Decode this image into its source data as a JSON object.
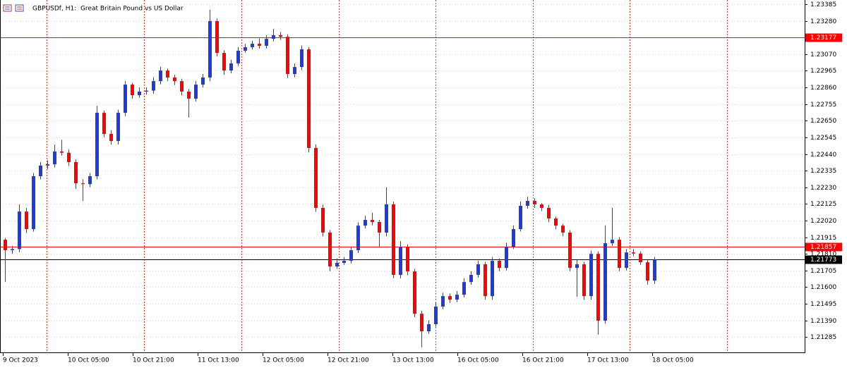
{
  "chart_data": {
    "type": "candlestick",
    "title": "GBPUSDf, H1:  Great Britain Pound vs US Dollar",
    "up_color": "#1f3be0",
    "down_color": "#ff0000",
    "ylim": [
      1.21188,
      1.23412
    ],
    "yticks": [
      1.23385,
      {
        "value": 1.2328,
        "label": "1.23280"
      },
      {
        "value": 1.2307,
        "label": "1.23070"
      },
      1.22965,
      {
        "value": 1.2286,
        "label": "1.22860"
      },
      1.22755,
      {
        "value": 1.2265,
        "label": "1.22650"
      },
      1.22545,
      {
        "value": 1.2244,
        "label": "1.22440"
      },
      1.22335,
      {
        "value": 1.2223,
        "label": "1.22230"
      },
      1.22125,
      {
        "value": 1.2202,
        "label": "1.22020"
      },
      1.21915,
      {
        "value": 1.2181,
        "label": "1.21810"
      },
      1.21705,
      {
        "value": 1.216,
        "label": "1.21600"
      },
      1.21495,
      {
        "value": 1.2139,
        "label": "1.21390"
      },
      1.21285
    ],
    "grid": true,
    "levels": [
      {
        "value": 1.23177,
        "color": "#ff0000"
      },
      {
        "value": 1.21857,
        "color": "#ff0000"
      }
    ],
    "last_price": 1.21773,
    "x_labels": [
      "9 Oct 2023",
      "10 Oct 05:00",
      "10 Oct 21:00",
      "11 Oct 13:00",
      "12 Oct 05:00",
      "12 Oct 21:00",
      "13 Oct 13:00",
      "16 Oct 05:00",
      "16 Oct 21:00",
      "17 Oct 13:00",
      "18 Oct 05:00"
    ],
    "open": [
      1.21899,
      1.21833,
      1.2184,
      1.22077,
      1.21966,
      1.223,
      1.22367,
      1.22375,
      1.22456,
      1.22448,
      1.22389,
      1.22255,
      1.2225,
      1.223,
      1.227,
      1.22567,
      1.22522,
      1.227,
      1.22878,
      1.22811,
      1.22834,
      1.2284,
      1.229,
      1.22967,
      1.22923,
      1.229,
      1.22834,
      1.22789,
      1.22878,
      1.22923,
      1.23279,
      1.23078,
      1.22967,
      1.23012,
      1.23092,
      1.23114,
      1.23136,
      1.23123,
      1.23167,
      1.2319,
      1.2318,
      1.22945,
      1.22989,
      1.23101,
      1.22478,
      1.221,
      1.21944,
      1.2173,
      1.21753,
      1.21766,
      1.21833,
      1.21988,
      1.22024,
      1.22011,
      1.21944,
      1.22122,
      1.21677,
      1.21855,
      1.21699,
      1.21432,
      1.21321,
      1.21366,
      1.21477,
      1.21543,
      1.21521,
      1.21552,
      1.21632,
      1.21677,
      1.21744,
      1.21543,
      1.21766,
      1.21721,
      1.21855,
      1.21966,
      1.22113,
      1.22144,
      1.22122,
      1.221,
      1.22033,
      1.21988,
      1.21944,
      1.21721,
      1.21744,
      1.21543,
      1.2181,
      1.21388,
      1.21877,
      1.21899,
      1.21721,
      1.21819,
      1.21812,
      1.21757,
      1.21641
    ],
    "high": [
      1.2191,
      1.2186,
      1.22122,
      1.221,
      1.2232,
      1.2239,
      1.224,
      1.225,
      1.2253,
      1.2247,
      1.22405,
      1.2228,
      1.2232,
      1.22745,
      1.22715,
      1.2259,
      1.2272,
      1.229,
      1.2289,
      1.2286,
      1.2286,
      1.22925,
      1.2299,
      1.2298,
      1.2294,
      1.22915,
      1.2285,
      1.229,
      1.22945,
      1.2335,
      1.23295,
      1.23095,
      1.23035,
      1.23115,
      1.23135,
      1.23155,
      1.2317,
      1.2319,
      1.2323,
      1.2321,
      1.23195,
      1.2301,
      1.23125,
      1.23115,
      1.225,
      1.2212,
      1.2196,
      1.2178,
      1.2179,
      1.21855,
      1.2201,
      1.2205,
      1.2207,
      1.22025,
      1.2223,
      1.2214,
      1.2189,
      1.2187,
      1.21715,
      1.2145,
      1.2139,
      1.215,
      1.21565,
      1.2156,
      1.21575,
      1.21655,
      1.217,
      1.21765,
      1.2176,
      1.2179,
      1.2178,
      1.2188,
      1.2199,
      1.2214,
      1.2217,
      1.2216,
      1.2213,
      1.2212,
      1.22045,
      1.22,
      1.2196,
      1.2177,
      1.2176,
      1.2183,
      1.21825,
      1.2199,
      1.221,
      1.21915,
      1.2184,
      1.2184,
      1.21825,
      1.2177,
      1.2179
    ],
    "low": [
      1.21632,
      1.2181,
      1.2182,
      1.2194,
      1.2195,
      1.2228,
      1.22345,
      1.22355,
      1.2243,
      1.22365,
      1.2222,
      1.22144,
      1.2223,
      1.2228,
      1.22545,
      1.225,
      1.225,
      1.2268,
      1.2279,
      1.22795,
      1.22815,
      1.2282,
      1.2288,
      1.229,
      1.22875,
      1.2281,
      1.2267,
      1.2277,
      1.2286,
      1.229,
      1.23055,
      1.2294,
      1.2295,
      1.22995,
      1.2308,
      1.231,
      1.23105,
      1.23105,
      1.2315,
      1.2316,
      1.2292,
      1.22925,
      1.2297,
      1.2245,
      1.22075,
      1.2192,
      1.217,
      1.21715,
      1.2174,
      1.2175,
      1.21815,
      1.2197,
      1.2199,
      1.21855,
      1.2192,
      1.21655,
      1.21655,
      1.21675,
      1.2141,
      1.2122,
      1.21305,
      1.2135,
      1.2146,
      1.215,
      1.21505,
      1.21535,
      1.21615,
      1.2166,
      1.2152,
      1.2152,
      1.217,
      1.21705,
      1.2184,
      1.2195,
      1.22095,
      1.221,
      1.2208,
      1.2201,
      1.21965,
      1.2192,
      1.217,
      1.2154,
      1.2152,
      1.2152,
      1.213,
      1.2137,
      1.2186,
      1.217,
      1.21705,
      1.21795,
      1.2174,
      1.21615,
      1.2162
    ],
    "close": [
      1.21833,
      1.2184,
      1.22077,
      1.21966,
      1.223,
      1.22367,
      1.22375,
      1.22456,
      1.22448,
      1.22389,
      1.22255,
      1.2225,
      1.223,
      1.227,
      1.22567,
      1.22522,
      1.227,
      1.22878,
      1.22811,
      1.22834,
      1.2284,
      1.229,
      1.22967,
      1.22923,
      1.229,
      1.22834,
      1.22789,
      1.22878,
      1.22923,
      1.23279,
      1.23078,
      1.22967,
      1.23012,
      1.23092,
      1.23114,
      1.23136,
      1.23123,
      1.23167,
      1.2319,
      1.2318,
      1.22945,
      1.22989,
      1.23101,
      1.22478,
      1.221,
      1.21944,
      1.2173,
      1.21753,
      1.21766,
      1.21833,
      1.21988,
      1.22024,
      1.22011,
      1.21944,
      1.22122,
      1.21677,
      1.21855,
      1.21699,
      1.21432,
      1.21321,
      1.21366,
      1.21477,
      1.21543,
      1.21521,
      1.21552,
      1.21632,
      1.21677,
      1.21744,
      1.21543,
      1.21766,
      1.21721,
      1.21855,
      1.21966,
      1.22113,
      1.22144,
      1.22122,
      1.221,
      1.22033,
      1.21988,
      1.21944,
      1.21721,
      1.21744,
      1.21543,
      1.2181,
      1.21388,
      1.21877,
      1.21899,
      1.21721,
      1.21819,
      1.21812,
      1.21757,
      1.21641,
      1.21773
    ]
  }
}
